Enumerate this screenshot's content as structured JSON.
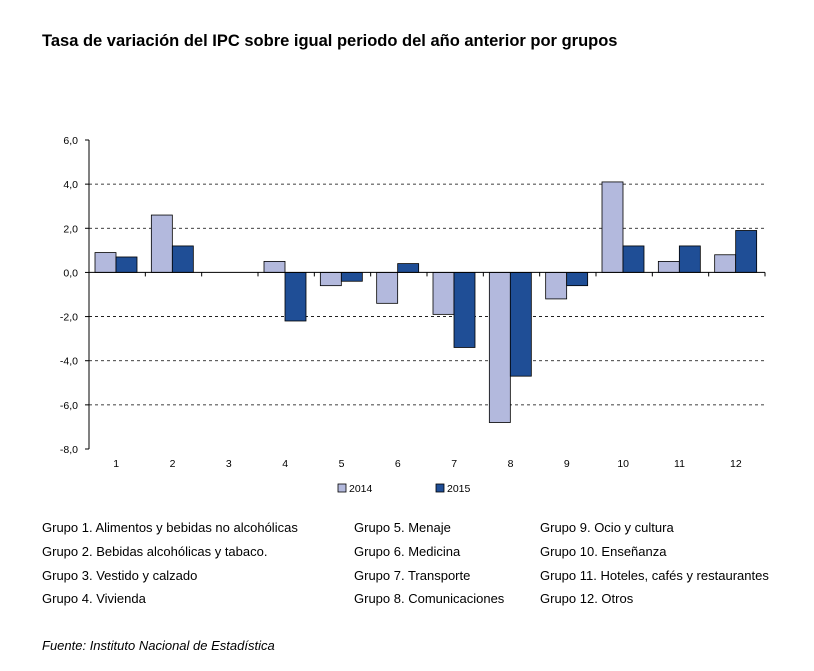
{
  "title": "Tasa de variación del IPC sobre igual periodo del año anterior por grupos",
  "chart_data": {
    "type": "bar",
    "categories": [
      "1",
      "2",
      "3",
      "4",
      "5",
      "6",
      "7",
      "8",
      "9",
      "10",
      "11",
      "12"
    ],
    "series": [
      {
        "name": "2014",
        "color": "#b3b9dd",
        "values": [
          0.9,
          2.6,
          0.0,
          0.5,
          -0.6,
          -1.4,
          -1.9,
          -6.8,
          -1.2,
          4.1,
          0.5,
          0.8
        ]
      },
      {
        "name": "2015",
        "color": "#1f4e96",
        "values": [
          0.7,
          1.2,
          0.0,
          -2.2,
          -0.4,
          0.4,
          -3.4,
          -4.7,
          -0.6,
          1.2,
          1.2,
          1.9
        ]
      }
    ],
    "ylim": [
      -8,
      6
    ],
    "yticks": [
      "6,0",
      "4,0",
      "2,0",
      "0,0",
      "-2,0",
      "-4,0",
      "-6,0",
      "-8,0"
    ],
    "grid": "dashed horizontal",
    "legend": "bottom-center"
  },
  "groups": [
    [
      "Grupo 1. Alimentos y bebidas no alcohólicas",
      "Grupo 2. Bebidas alcohólicas y  tabaco.",
      "Grupo 3. Vestido y calzado",
      "Grupo 4. Vivienda"
    ],
    [
      "Grupo 5. Menaje",
      "Grupo 6. Medicina",
      "Grupo 7. Transporte",
      "Grupo 8. Comunicaciones"
    ],
    [
      "Grupo 9. Ocio y cultura",
      "Grupo 10. Enseñanza",
      "Grupo 11. Hoteles, cafés y restaurantes",
      "Grupo 12. Otros"
    ]
  ],
  "source": "Fuente: Instituto Nacional de Estadística"
}
